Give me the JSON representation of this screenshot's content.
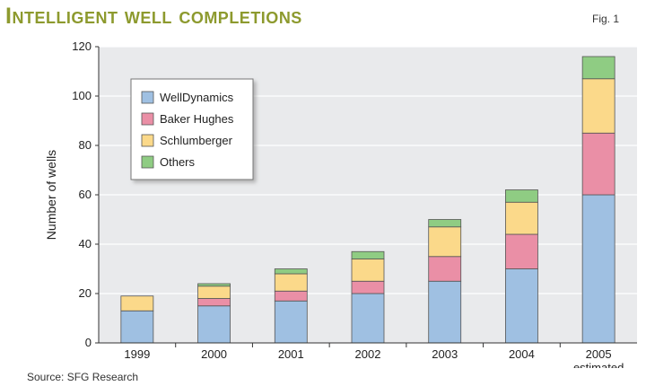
{
  "header": {
    "title": "Intelligent well completions",
    "fig_label": "Fig. 1"
  },
  "footer": {
    "source": "Source: SFG Research"
  },
  "colors": {
    "title": "#8d9a2e",
    "plot_bg": "#e9eaec",
    "WellDynamics": "#9fc0e2",
    "Baker Hughes": "#ea8fa6",
    "Schlumberger": "#fbd98a",
    "Others": "#8fcc83"
  },
  "chart_data": {
    "type": "bar",
    "stacked": true,
    "title": "Intelligent well completions",
    "xlabel": "",
    "ylabel": "Number of wells",
    "ylim": [
      0,
      120
    ],
    "yticks": [
      0,
      20,
      40,
      60,
      80,
      100,
      120
    ],
    "grid": true,
    "legend_position": "top-left",
    "categories": [
      "1999",
      "2000",
      "2001",
      "2002",
      "2003",
      "2004",
      "2005"
    ],
    "category_sublabels": [
      "",
      "",
      "",
      "",
      "",
      "",
      "estimated"
    ],
    "series": [
      {
        "name": "WellDynamics",
        "values": [
          13,
          15,
          17,
          20,
          25,
          30,
          60
        ]
      },
      {
        "name": "Baker Hughes",
        "values": [
          0,
          3,
          4,
          5,
          10,
          14,
          25
        ]
      },
      {
        "name": "Schlumberger",
        "values": [
          6,
          5,
          7,
          9,
          12,
          13,
          22
        ]
      },
      {
        "name": "Others",
        "values": [
          0,
          1,
          2,
          3,
          3,
          5,
          9
        ]
      }
    ]
  }
}
